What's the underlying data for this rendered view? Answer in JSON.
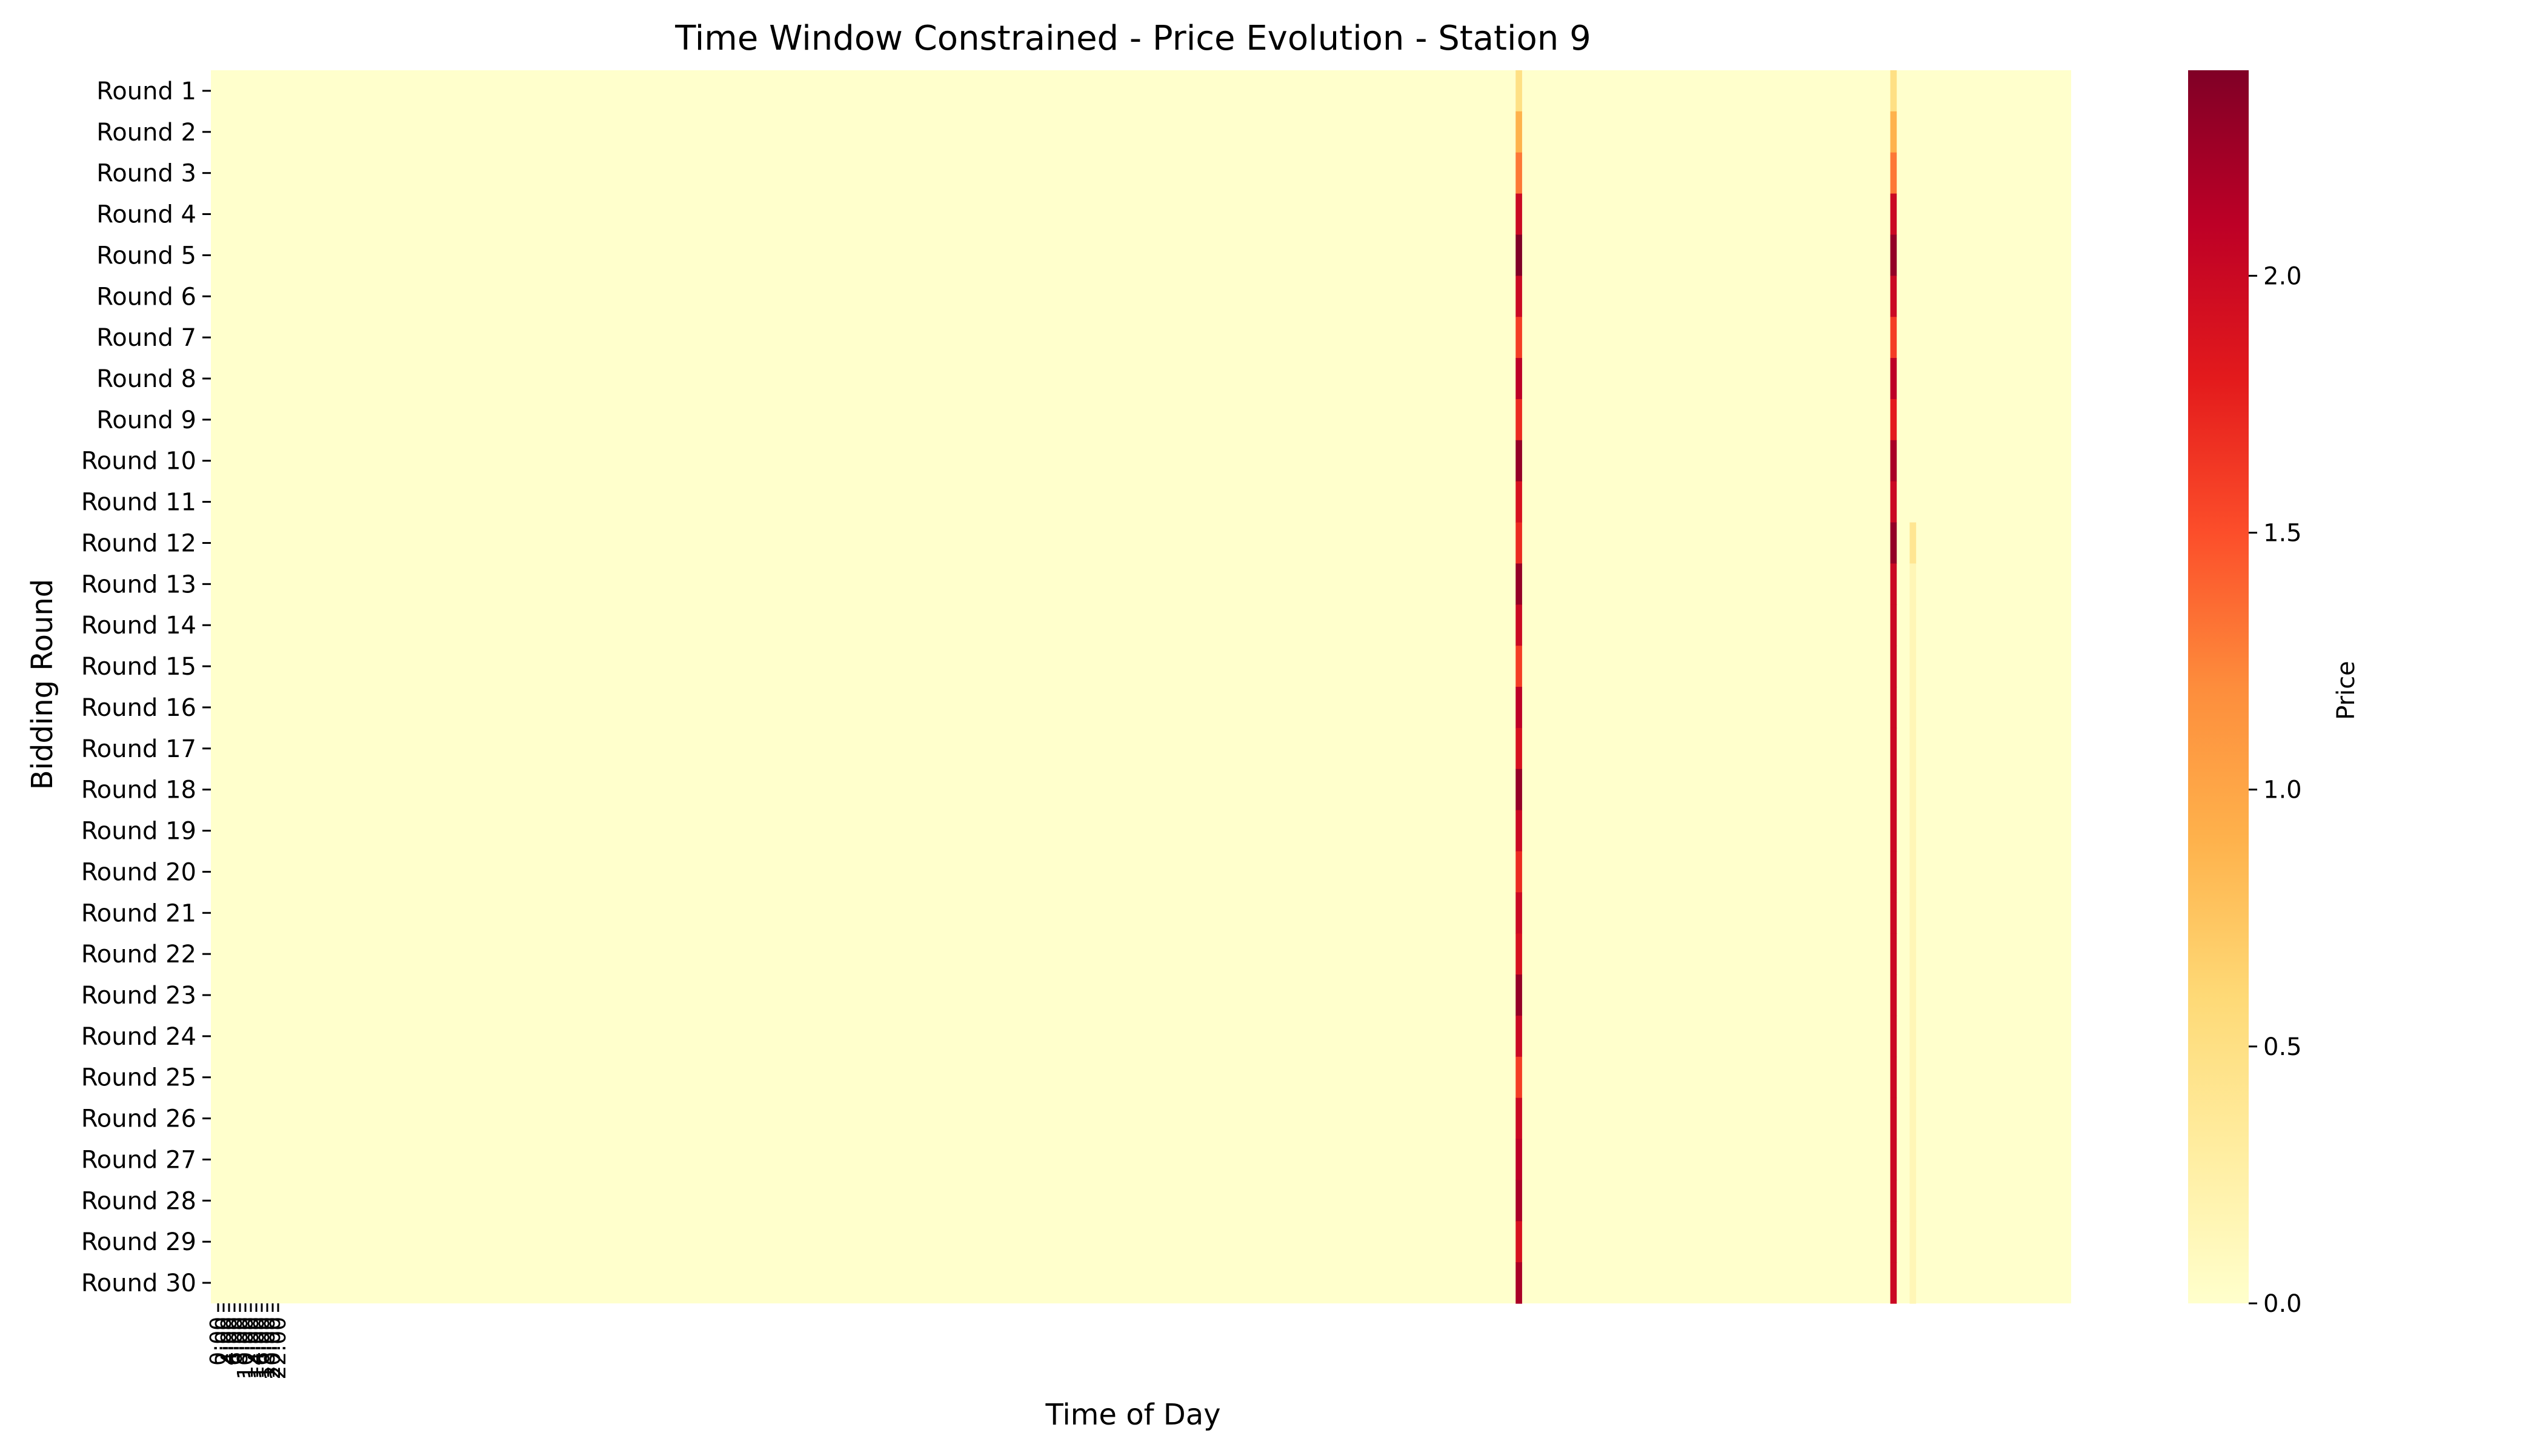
{
  "chart_data": {
    "type": "heatmap",
    "title": "Time Window Constrained - Price Evolution - Station 9",
    "xlabel": "Time of Day",
    "ylabel": "Bidding Round",
    "colorbar_label": "Price",
    "colormap": [
      "#ffffcc",
      "#ffeda0",
      "#fed976",
      "#feb24c",
      "#fd8d3c",
      "#fc4e2a",
      "#e31a1c",
      "#bd0026",
      "#800026"
    ],
    "color_range": [
      0,
      2.4
    ],
    "colorbar_ticks": [
      "0.0",
      "0.5",
      "1.0",
      "1.5",
      "2.0"
    ],
    "rows": [
      "Round 1",
      "Round 2",
      "Round 3",
      "Round 4",
      "Round 5",
      "Round 6",
      "Round 7",
      "Round 8",
      "Round 9",
      "Round 10",
      "Round 11",
      "Round 12",
      "Round 13",
      "Round 14",
      "Round 15",
      "Round 16",
      "Round 17",
      "Round 18",
      "Round 19",
      "Round 20",
      "Round 21",
      "Round 22",
      "Round 23",
      "Round 24",
      "Round 25",
      "Round 26",
      "Round 27",
      "Round 28",
      "Round 29",
      "Round 30"
    ],
    "n_columns": 288,
    "x_tick_labels": [
      "0:00",
      "2:00",
      "4:00",
      "6:00",
      "8:00",
      "10:00",
      "12:00",
      "14:00",
      "16:00",
      "18:00",
      "20:00",
      "22:00"
    ],
    "background_value": 0.0,
    "series": [
      {
        "column": 202,
        "values": [
          0.5,
          0.9,
          1.3,
          2.0,
          2.4,
          2.0,
          1.6,
          2.1,
          1.7,
          2.3,
          1.9,
          1.7,
          2.3,
          2.0,
          1.6,
          2.1,
          1.9,
          2.3,
          2.0,
          1.7,
          2.0,
          1.9,
          2.3,
          2.0,
          1.6,
          2.0,
          2.1,
          2.2,
          1.9,
          2.2
        ]
      },
      {
        "column": 260,
        "values": [
          0.5,
          0.9,
          1.3,
          2.0,
          2.3,
          2.0,
          1.6,
          2.1,
          1.8,
          2.2,
          2.0,
          2.3,
          2.0,
          2.0,
          2.0,
          2.0,
          2.0,
          2.0,
          2.0,
          2.0,
          2.0,
          2.0,
          2.0,
          2.0,
          2.0,
          2.0,
          2.0,
          2.0,
          2.0,
          2.0
        ]
      },
      {
        "column": 263,
        "values": [
          0,
          0,
          0,
          0,
          0,
          0,
          0,
          0,
          0,
          0,
          0,
          0.4,
          0.15,
          0.15,
          0.15,
          0.15,
          0.15,
          0.15,
          0.15,
          0.15,
          0.15,
          0.15,
          0.15,
          0.15,
          0.15,
          0.15,
          0.15,
          0.15,
          0.15,
          0.15
        ]
      }
    ]
  }
}
